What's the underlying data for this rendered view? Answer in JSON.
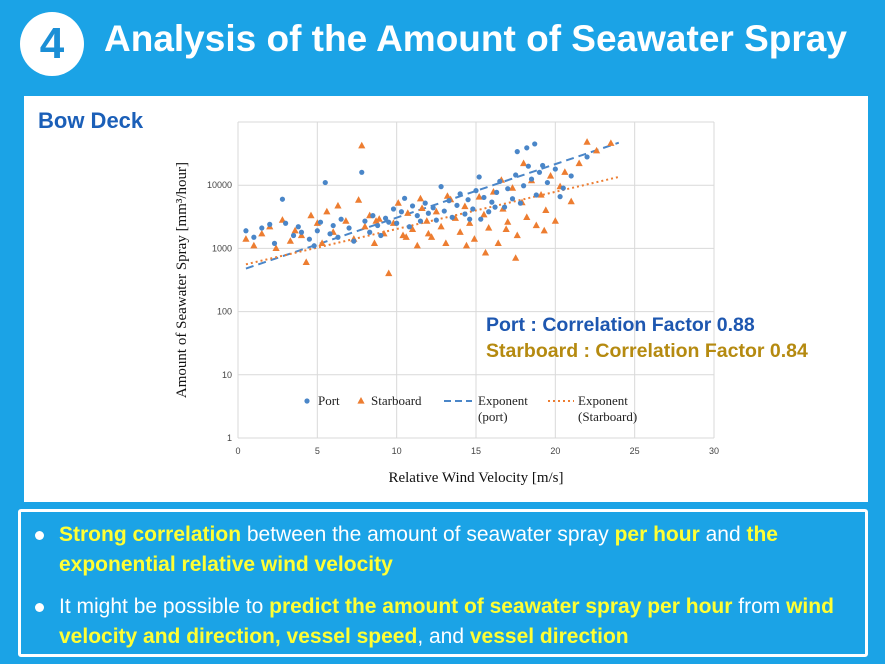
{
  "header": {
    "number": "4",
    "title": "Analysis of the Amount of Seawater Spray"
  },
  "panel": {
    "section_label": "Bow Deck",
    "port_corr": "Port : Correlation Factor 0.88",
    "starboard_corr": "Starboard : Correlation Factor 0.84"
  },
  "colors": {
    "background": "#1ba3e6",
    "port": "#4a86c8",
    "starboard": "#ed7d31",
    "highlight": "#ffff33"
  },
  "bullets": [
    {
      "parts": [
        {
          "text": "Strong correlation",
          "hl": true
        },
        {
          "text": " between the amount of seawater spray ",
          "hl": false
        },
        {
          "text": "per hour",
          "hl": true
        },
        {
          "text": " and ",
          "hl": false
        },
        {
          "text": "the exponential relative wind velocity",
          "hl": true
        }
      ]
    },
    {
      "parts": [
        {
          "text": "It might be possible to ",
          "hl": false
        },
        {
          "text": "predict the amount of seawater spray per hour",
          "hl": true
        },
        {
          "text": " from ",
          "hl": false
        },
        {
          "text": "wind velocity and direction, vessel speed",
          "hl": true
        },
        {
          "text": ", and ",
          "hl": false
        },
        {
          "text": "vessel direction",
          "hl": true
        }
      ]
    }
  ],
  "chart_data": {
    "type": "scatter",
    "xlabel": "Relative Wind Velocity [m/s]",
    "ylabel": "Amount of Seawater Spray [mm³/hour]",
    "xlim": [
      0,
      30
    ],
    "ylim": [
      1,
      100000
    ],
    "yscale": "log",
    "xticks": [
      0,
      5,
      10,
      15,
      20,
      25,
      30
    ],
    "yticks": [
      1,
      10,
      100,
      1000,
      10000
    ],
    "ytick_labels": [
      "1",
      "10",
      "100",
      "1000",
      "10000"
    ],
    "grid": true,
    "legend": {
      "position": "bottom-center",
      "entries": [
        {
          "label": "Port",
          "marker": "circle"
        },
        {
          "label": "Starboard",
          "marker": "triangle"
        },
        {
          "label": "Exponent (port)",
          "marker": "dashed"
        },
        {
          "label": "Exponent (Starboard)",
          "marker": "dotted"
        }
      ]
    },
    "series": [
      {
        "name": "Port",
        "color": "#4a86c8",
        "points": [
          [
            0.5,
            1900
          ],
          [
            1.0,
            1500
          ],
          [
            1.5,
            2100
          ],
          [
            2.0,
            2400
          ],
          [
            2.3,
            1200
          ],
          [
            2.8,
            6000
          ],
          [
            3.0,
            2500
          ],
          [
            3.5,
            1600
          ],
          [
            3.8,
            2200
          ],
          [
            4.0,
            1800
          ],
          [
            4.5,
            1400
          ],
          [
            4.8,
            1100
          ],
          [
            5.0,
            1900
          ],
          [
            5.2,
            2600
          ],
          [
            5.5,
            11000
          ],
          [
            5.8,
            1700
          ],
          [
            6.0,
            2300
          ],
          [
            6.3,
            1500
          ],
          [
            6.5,
            2900
          ],
          [
            7.0,
            2100
          ],
          [
            7.3,
            1300
          ],
          [
            7.8,
            16000
          ],
          [
            8.0,
            2700
          ],
          [
            8.3,
            1800
          ],
          [
            8.5,
            3300
          ],
          [
            8.8,
            2300
          ],
          [
            9.0,
            1600
          ],
          [
            9.3,
            3000
          ],
          [
            9.5,
            2600
          ],
          [
            9.8,
            4200
          ],
          [
            10.0,
            2500
          ],
          [
            10.3,
            3800
          ],
          [
            10.5,
            6200
          ],
          [
            10.8,
            2200
          ],
          [
            11.0,
            4700
          ],
          [
            11.3,
            3300
          ],
          [
            11.5,
            2700
          ],
          [
            11.8,
            5200
          ],
          [
            12.0,
            3600
          ],
          [
            12.3,
            4400
          ],
          [
            12.5,
            2800
          ],
          [
            12.8,
            9500
          ],
          [
            13.0,
            3900
          ],
          [
            13.3,
            5700
          ],
          [
            13.5,
            3100
          ],
          [
            13.8,
            4800
          ],
          [
            14.0,
            7300
          ],
          [
            14.3,
            3500
          ],
          [
            14.5,
            5900
          ],
          [
            14.8,
            4200
          ],
          [
            15.0,
            8200
          ],
          [
            15.3,
            2900
          ],
          [
            15.5,
            6400
          ],
          [
            15.8,
            3800
          ],
          [
            16.0,
            5400
          ],
          [
            16.3,
            7700
          ],
          [
            16.5,
            11500
          ],
          [
            16.8,
            4500
          ],
          [
            17.0,
            8800
          ],
          [
            17.3,
            6100
          ],
          [
            17.5,
            14500
          ],
          [
            17.8,
            5200
          ],
          [
            18.0,
            9800
          ],
          [
            18.3,
            20000
          ],
          [
            18.5,
            12500
          ],
          [
            18.7,
            45000
          ],
          [
            18.8,
            7000
          ],
          [
            19.0,
            16000
          ],
          [
            19.5,
            11000
          ],
          [
            20.0,
            18000
          ],
          [
            20.5,
            9000
          ],
          [
            21.0,
            14000
          ],
          [
            22.0,
            28000
          ],
          [
            17.6,
            34000
          ],
          [
            18.2,
            39000
          ],
          [
            15.2,
            13500
          ],
          [
            16.2,
            4500
          ],
          [
            19.2,
            20500
          ],
          [
            20.3,
            6600
          ],
          [
            14.6,
            2900
          ]
        ]
      },
      {
        "name": "Starboard",
        "color": "#ed7d31",
        "points": [
          [
            0.5,
            1400
          ],
          [
            1.0,
            1100
          ],
          [
            1.5,
            1700
          ],
          [
            2.0,
            2200
          ],
          [
            2.4,
            1000
          ],
          [
            2.8,
            2800
          ],
          [
            3.3,
            1300
          ],
          [
            3.6,
            1900
          ],
          [
            4.0,
            1600
          ],
          [
            4.3,
            600
          ],
          [
            4.6,
            3300
          ],
          [
            5.0,
            2500
          ],
          [
            5.3,
            1200
          ],
          [
            5.6,
            3800
          ],
          [
            6.0,
            1800
          ],
          [
            6.3,
            4700
          ],
          [
            6.8,
            2700
          ],
          [
            7.3,
            1400
          ],
          [
            7.6,
            5800
          ],
          [
            7.8,
            42000
          ],
          [
            8.0,
            2200
          ],
          [
            8.3,
            3300
          ],
          [
            8.6,
            1200
          ],
          [
            8.9,
            2900
          ],
          [
            9.2,
            1700
          ],
          [
            9.5,
            400
          ],
          [
            9.8,
            2500
          ],
          [
            10.1,
            5200
          ],
          [
            10.4,
            1600
          ],
          [
            10.7,
            3600
          ],
          [
            11.0,
            2000
          ],
          [
            11.3,
            1100
          ],
          [
            11.6,
            4300
          ],
          [
            11.9,
            2700
          ],
          [
            12.2,
            1500
          ],
          [
            12.5,
            3800
          ],
          [
            12.8,
            2200
          ],
          [
            13.1,
            1200
          ],
          [
            13.4,
            5900
          ],
          [
            13.7,
            3000
          ],
          [
            14.0,
            1800
          ],
          [
            14.3,
            4600
          ],
          [
            14.6,
            2500
          ],
          [
            14.9,
            1400
          ],
          [
            15.2,
            6500
          ],
          [
            15.5,
            3400
          ],
          [
            15.8,
            2100
          ],
          [
            16.1,
            7800
          ],
          [
            16.4,
            1200
          ],
          [
            16.7,
            4200
          ],
          [
            17.0,
            2600
          ],
          [
            17.3,
            9000
          ],
          [
            17.6,
            1600
          ],
          [
            17.9,
            5300
          ],
          [
            18.2,
            3100
          ],
          [
            18.5,
            11800
          ],
          [
            18.8,
            2300
          ],
          [
            19.1,
            7000
          ],
          [
            19.4,
            4000
          ],
          [
            19.7,
            14000
          ],
          [
            20.0,
            2700
          ],
          [
            20.3,
            9500
          ],
          [
            20.6,
            16000
          ],
          [
            21.0,
            5500
          ],
          [
            21.5,
            22000
          ],
          [
            22.0,
            48000
          ],
          [
            22.6,
            35000
          ],
          [
            23.5,
            46000
          ],
          [
            17.5,
            700
          ],
          [
            14.4,
            1100
          ],
          [
            13.2,
            6700
          ],
          [
            16.9,
            2000
          ],
          [
            12.0,
            1700
          ],
          [
            15.6,
            850
          ],
          [
            18.0,
            22000
          ],
          [
            11.5,
            6100
          ],
          [
            19.3,
            1900
          ],
          [
            16.6,
            12000
          ],
          [
            10.6,
            1500
          ],
          [
            8.7,
            2700
          ]
        ]
      }
    ],
    "trendlines": [
      {
        "name": "Exponent (port)",
        "type": "exponential",
        "from": [
          0.5,
          480
        ],
        "to": [
          24,
          47000
        ],
        "style": "dashed",
        "color": "#4a86c8"
      },
      {
        "name": "Exponent (Starboard)",
        "type": "exponential",
        "from": [
          0.5,
          560
        ],
        "to": [
          24,
          13500
        ],
        "style": "dotted",
        "color": "#ed7d31"
      }
    ]
  }
}
